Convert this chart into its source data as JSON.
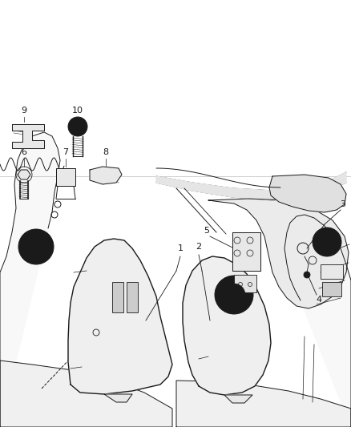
{
  "background_color": "#ffffff",
  "line_color": "#1a1a1a",
  "label_color": "#1a1a1a",
  "figsize": [
    4.38,
    5.33
  ],
  "dpi": 100,
  "lw": 0.7,
  "fill_color": "#f8f8f8",
  "shade_color": "#e8e8e8",
  "dark_shade": "#cccccc"
}
